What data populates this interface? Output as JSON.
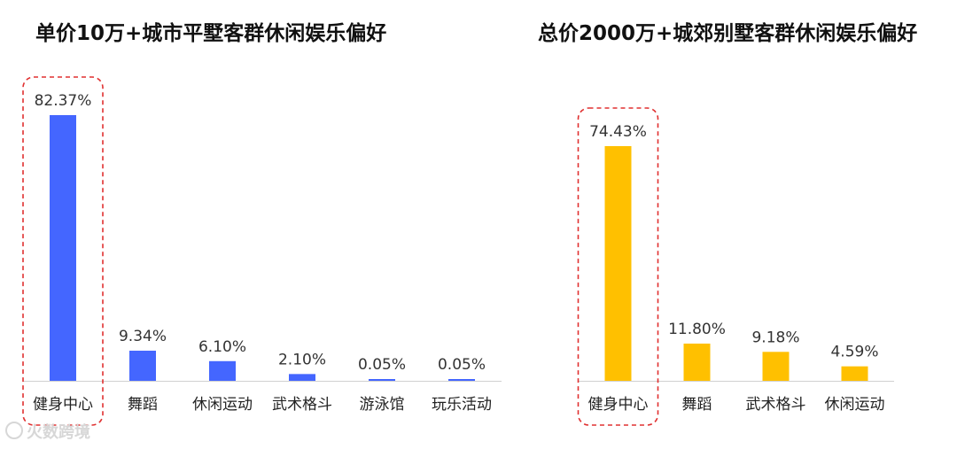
{
  "chart_data": [
    {
      "type": "bar",
      "title": "单价10万+城市平墅客群休闲娱乐偏好",
      "categories": [
        "健身中心",
        "舞蹈",
        "休闲运动",
        "武术格斗",
        "游泳馆",
        "玩乐活动"
      ],
      "values": [
        82.37,
        9.34,
        6.1,
        2.1,
        0.05,
        0.05
      ],
      "value_labels": [
        "82.37%",
        "9.34%",
        "6.10%",
        "2.10%",
        "0.05%",
        "0.05%"
      ],
      "color": "#4466ff",
      "highlight_category": "健身中心",
      "ylim": [
        0,
        100
      ],
      "xlabel": "",
      "ylabel": ""
    },
    {
      "type": "bar",
      "title": "总价2000万+城郊别墅客群休闲娱乐偏好",
      "categories": [
        "健身中心",
        "舞蹈",
        "武术格斗",
        "休闲运动"
      ],
      "values": [
        74.43,
        11.8,
        9.18,
        4.59
      ],
      "value_labels": [
        "74.43%",
        "11.80%",
        "9.18%",
        "4.59%"
      ],
      "color": "#ffc000",
      "highlight_category": "健身中心",
      "ylim": [
        0,
        100
      ],
      "xlabel": "",
      "ylabel": ""
    }
  ],
  "colors": {
    "highlight_border": "#e03030",
    "axis": "#d0d0d0"
  },
  "watermark": {
    "text": "火数跨境",
    "icon": "logo-icon"
  }
}
